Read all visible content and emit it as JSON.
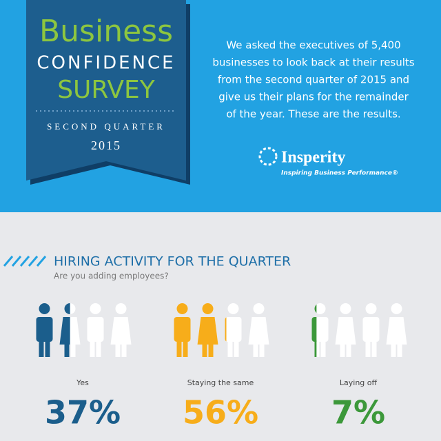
{
  "header": {
    "title_line1": "Business",
    "title_line2": "CONFIDENCE",
    "title_line3": "SURVEY",
    "period": "SECOND QUARTER",
    "year": "2015"
  },
  "intro": [
    "We asked the executives of 5,400",
    "businesses to look back at their results",
    "from the second quarter of 2015 and",
    "give us their plans for the remainder",
    "of the year. These are the results."
  ],
  "logo": {
    "name": "Insperity",
    "tagline": "Inspiring Business Performance®"
  },
  "section": {
    "title": "HIRING ACTIVITY FOR THE QUARTER",
    "subtitle": "Are you adding employees?",
    "items": [
      {
        "label": "Yes",
        "value": 37,
        "value_label": "37%",
        "color": "#1b5e8c"
      },
      {
        "label": "Staying the same",
        "value": 56,
        "value_label": "56%",
        "color": "#f7ad1a"
      },
      {
        "label": "Laying off",
        "value": 7,
        "value_label": "7%",
        "color": "#3c983a"
      }
    ]
  }
}
